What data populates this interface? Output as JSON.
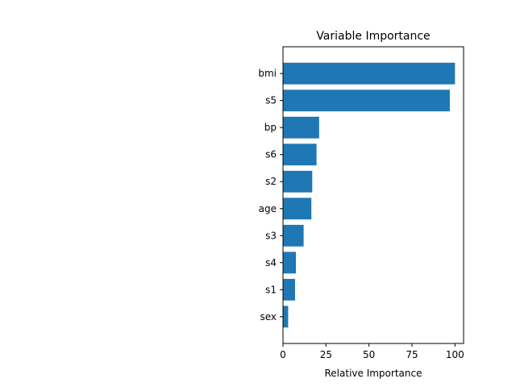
{
  "chart_data": {
    "type": "bar",
    "orientation": "horizontal",
    "title": "Variable Importance",
    "xlabel": "Relative Importance",
    "ylabel": "",
    "xlim": [
      0,
      105
    ],
    "xticks": [
      0,
      25,
      50,
      75,
      100
    ],
    "grid": false,
    "legend": "none",
    "bar_color": "#1f77b4",
    "categories": [
      "sex",
      "s1",
      "s4",
      "s3",
      "age",
      "s2",
      "s6",
      "bp",
      "s5",
      "bmi"
    ],
    "values": [
      3,
      7,
      7.5,
      12,
      16.5,
      17,
      19.5,
      21,
      97,
      100
    ]
  }
}
